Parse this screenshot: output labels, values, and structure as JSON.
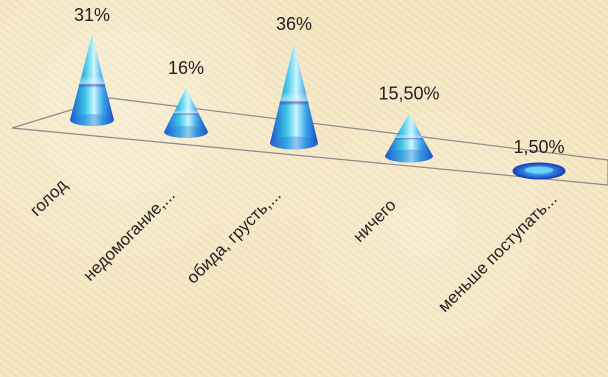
{
  "chart_data": {
    "type": "bar",
    "style": "3d-cone",
    "categories": [
      "голод",
      "недомогание,...",
      "обида, грусть,...",
      "ничего",
      "меньше поступать..."
    ],
    "values": [
      31,
      16,
      36,
      15.5,
      1.5
    ],
    "data_labels": [
      "31%",
      "16%",
      "36%",
      "15,50%",
      "1,50%"
    ],
    "ylim": [
      0,
      40
    ],
    "grid": false,
    "legend": "none",
    "colors": {
      "cone_light": "#b9f3ff",
      "cone_mid": "#3ec6e8",
      "cone_dark": "#1b5fd6",
      "band": "#5a2fa8",
      "floor_line": "#8a8a8a"
    }
  }
}
